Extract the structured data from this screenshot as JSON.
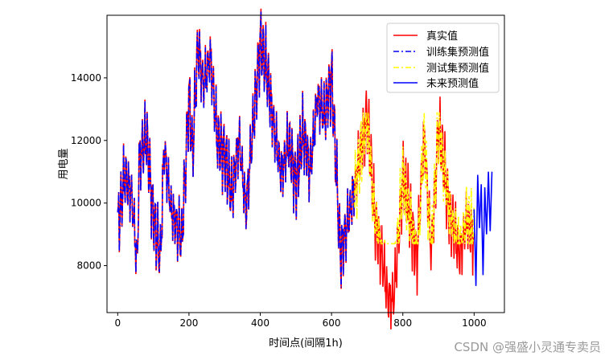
{
  "chart_data": {
    "type": "line",
    "xlabel": "时间点(间隔1h)",
    "ylabel": "用电量",
    "xlim": [
      -30,
      1085
    ],
    "ylim": [
      6500,
      16000
    ],
    "xticks": [
      0,
      200,
      400,
      600,
      800,
      1000
    ],
    "yticks": [
      8000,
      10000,
      12000,
      14000
    ],
    "legend_position": "top-right",
    "series": [
      {
        "name": "真实值",
        "color": "#ff0000",
        "style": "solid",
        "x_range": [
          0,
          1000
        ],
        "x": [
          0,
          20,
          40,
          55,
          60,
          80,
          100,
          120,
          130,
          150,
          180,
          200,
          210,
          225,
          240,
          260,
          280,
          300,
          320,
          340,
          360,
          400,
          420,
          440,
          460,
          480,
          500,
          520,
          540,
          560,
          580,
          600,
          625,
          660,
          700,
          720,
          740,
          760,
          775,
          800,
          840,
          860,
          880,
          900,
          930,
          960,
          980,
          1000
        ],
        "y": [
          9200,
          10900,
          10200,
          7900,
          11300,
          12200,
          9600,
          8200,
          11800,
          9800,
          8800,
          13500,
          11500,
          15100,
          13800,
          14700,
          12000,
          11600,
          10200,
          12100,
          9800,
          15200,
          14100,
          12300,
          10900,
          12000,
          10600,
          12300,
          11000,
          13400,
          12800,
          14100,
          8300,
          10200,
          12900,
          9600,
          8400,
          6850,
          7000,
          10900,
          8200,
          12200,
          8300,
          12500,
          9800,
          8300,
          9500,
          8800
        ]
      },
      {
        "name": "训练集预测值",
        "color": "#0000ff",
        "style": "dashdot",
        "x_range": [
          0,
          665
        ]
      },
      {
        "name": "测试集预测值",
        "color": "#ffff00",
        "style": "dashdot",
        "x_range": [
          665,
          1000
        ]
      },
      {
        "name": "未来预测值",
        "color": "#0000ff",
        "style": "solid",
        "x_range": [
          1000,
          1050
        ],
        "x": [
          1000,
          1005,
          1010,
          1015,
          1020,
          1025,
          1030,
          1035,
          1040,
          1045,
          1050
        ],
        "y": [
          9800,
          7350,
          10900,
          9200,
          10600,
          7700,
          10500,
          9000,
          11000,
          9100,
          11000
        ]
      }
    ]
  },
  "watermark": "CSDN @强盛小灵通专卖员"
}
